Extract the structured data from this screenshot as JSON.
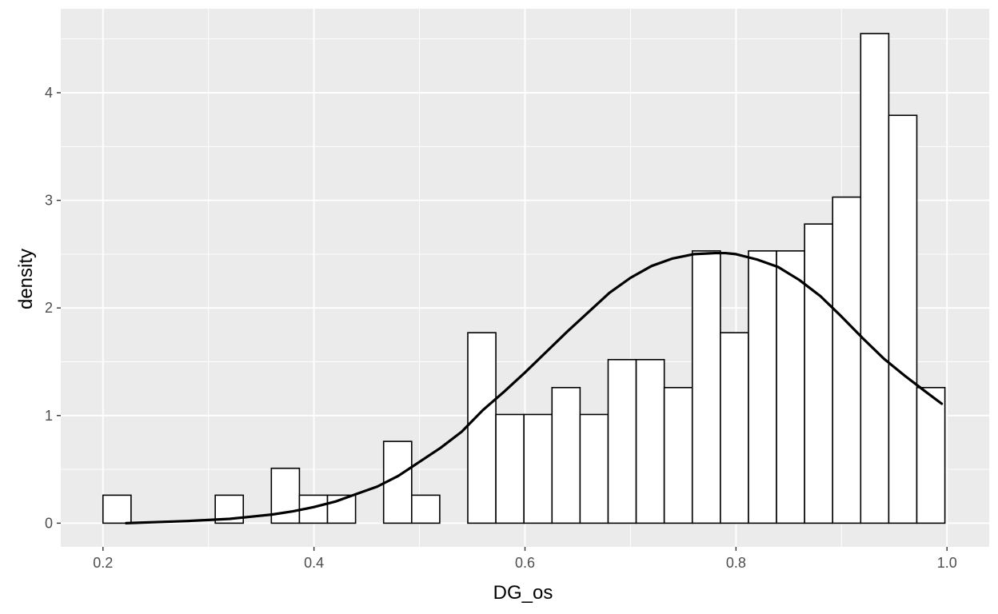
{
  "chart_data": {
    "type": "bar",
    "subtype": "histogram-with-density",
    "title": "",
    "xlabel": "DG_os",
    "ylabel": "density",
    "xlim": [
      0.16,
      1.04
    ],
    "ylim": [
      -0.22,
      4.78
    ],
    "x_ticks": [
      0.2,
      0.4,
      0.6,
      0.8,
      1.0
    ],
    "x_tick_labels": [
      "0.2",
      "0.4",
      "0.6",
      "0.8",
      "1.0"
    ],
    "y_ticks": [
      0,
      1,
      2,
      3,
      4
    ],
    "y_tick_labels": [
      "0",
      "1",
      "2",
      "3",
      "4"
    ],
    "grid": true,
    "colors": {
      "panel_background": "#ebebeb",
      "grid_major": "#ffffff",
      "bar_fill": "#ffffff",
      "bar_outline": "#000000",
      "density_line": "#000000",
      "tick_text": "#4d4d4d",
      "tick_mark": "#333333"
    },
    "bin_width": 0.0266,
    "bins": [
      {
        "x0": 0.2,
        "x1": 0.2266,
        "density": 0.26
      },
      {
        "x0": 0.2266,
        "x1": 0.2532,
        "density": 0
      },
      {
        "x0": 0.2532,
        "x1": 0.2798,
        "density": 0
      },
      {
        "x0": 0.2798,
        "x1": 0.3064,
        "density": 0
      },
      {
        "x0": 0.3064,
        "x1": 0.333,
        "density": 0.26
      },
      {
        "x0": 0.333,
        "x1": 0.3596,
        "density": 0
      },
      {
        "x0": 0.3596,
        "x1": 0.3862,
        "density": 0.51
      },
      {
        "x0": 0.3862,
        "x1": 0.4128,
        "density": 0.26
      },
      {
        "x0": 0.4128,
        "x1": 0.4394,
        "density": 0.26
      },
      {
        "x0": 0.4394,
        "x1": 0.466,
        "density": 0
      },
      {
        "x0": 0.466,
        "x1": 0.4926,
        "density": 0.76
      },
      {
        "x0": 0.4926,
        "x1": 0.5192,
        "density": 0.26
      },
      {
        "x0": 0.5192,
        "x1": 0.5458,
        "density": 0
      },
      {
        "x0": 0.5458,
        "x1": 0.5724,
        "density": 1.77
      },
      {
        "x0": 0.5724,
        "x1": 0.599,
        "density": 1.01
      },
      {
        "x0": 0.599,
        "x1": 0.6256,
        "density": 1.01
      },
      {
        "x0": 0.6256,
        "x1": 0.6522,
        "density": 1.26
      },
      {
        "x0": 0.6522,
        "x1": 0.6788,
        "density": 1.01
      },
      {
        "x0": 0.6788,
        "x1": 0.7054,
        "density": 1.52
      },
      {
        "x0": 0.7054,
        "x1": 0.732,
        "density": 1.52
      },
      {
        "x0": 0.732,
        "x1": 0.7586,
        "density": 1.26
      },
      {
        "x0": 0.7586,
        "x1": 0.7852,
        "density": 2.53
      },
      {
        "x0": 0.7852,
        "x1": 0.8118,
        "density": 1.77
      },
      {
        "x0": 0.8118,
        "x1": 0.8384,
        "density": 2.53
      },
      {
        "x0": 0.8384,
        "x1": 0.865,
        "density": 2.53
      },
      {
        "x0": 0.865,
        "x1": 0.8916,
        "density": 2.78
      },
      {
        "x0": 0.8916,
        "x1": 0.9182,
        "density": 3.03
      },
      {
        "x0": 0.9182,
        "x1": 0.9448,
        "density": 4.55
      },
      {
        "x0": 0.9448,
        "x1": 0.9714,
        "density": 3.79
      },
      {
        "x0": 0.9714,
        "x1": 0.998,
        "density": 1.26
      }
    ],
    "density_curve": {
      "x": [
        0.222,
        0.25,
        0.28,
        0.3,
        0.32,
        0.34,
        0.36,
        0.38,
        0.4,
        0.42,
        0.44,
        0.46,
        0.48,
        0.5,
        0.52,
        0.54,
        0.56,
        0.58,
        0.6,
        0.62,
        0.64,
        0.66,
        0.68,
        0.7,
        0.72,
        0.74,
        0.76,
        0.78,
        0.79,
        0.8,
        0.82,
        0.84,
        0.86,
        0.88,
        0.9,
        0.92,
        0.94,
        0.96,
        0.98,
        0.995
      ],
      "y": [
        0.0,
        0.01,
        0.02,
        0.03,
        0.04,
        0.06,
        0.08,
        0.11,
        0.15,
        0.2,
        0.27,
        0.34,
        0.44,
        0.57,
        0.7,
        0.85,
        1.05,
        1.22,
        1.4,
        1.59,
        1.78,
        1.96,
        2.14,
        2.28,
        2.39,
        2.46,
        2.5,
        2.51,
        2.51,
        2.5,
        2.45,
        2.38,
        2.26,
        2.11,
        1.92,
        1.72,
        1.53,
        1.37,
        1.22,
        1.11
      ]
    }
  }
}
